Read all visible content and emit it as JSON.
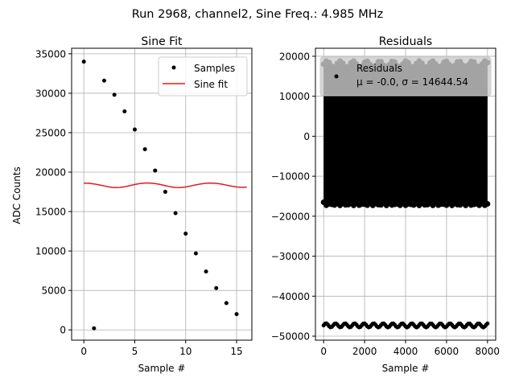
{
  "figure": {
    "suptitle": "Run 2968, channel2, Sine Freq.: 4.985 MHz"
  },
  "colors": {
    "samples": "#000000",
    "fit": "#e31a1c",
    "grid": "#b0b0b0",
    "legend_box": "#cccccc",
    "residual_fill": "#000000"
  },
  "chart_data": [
    {
      "type": "scatter",
      "title": "Sine Fit",
      "xlabel": "Sample #",
      "ylabel": "ADC Counts",
      "xlim": [
        -1.2,
        16.5
      ],
      "ylim": [
        -1300,
        35700
      ],
      "xticks": [
        0,
        5,
        10,
        15
      ],
      "yticks": [
        0,
        5000,
        10000,
        15000,
        20000,
        25000,
        30000,
        35000
      ],
      "xtick_labels": [
        "0",
        "5",
        "10",
        "15"
      ],
      "ytick_labels": [
        "0",
        "5000",
        "10000",
        "15000",
        "20000",
        "25000",
        "30000",
        "35000"
      ],
      "grid": true,
      "legend_position": "top-right",
      "series": [
        {
          "name": "Samples",
          "kind": "points",
          "x": [
            0,
            1,
            2,
            3,
            4,
            5,
            6,
            7,
            8,
            9,
            10,
            11,
            12,
            13,
            14,
            15
          ],
          "values": [
            34000,
            200,
            31600,
            29800,
            27700,
            25400,
            22900,
            20200,
            17500,
            14800,
            12200,
            9700,
            7400,
            5300,
            3400,
            2000
          ]
        },
        {
          "name": "Sine fit",
          "kind": "line",
          "x": [
            0,
            0.5,
            1,
            1.5,
            2,
            2.5,
            3,
            3.5,
            4,
            4.5,
            5,
            5.5,
            6,
            6.5,
            7,
            7.5,
            8,
            8.5,
            9,
            9.5,
            10,
            10.5,
            11,
            11.5,
            12,
            12.5,
            13,
            13.5,
            14,
            14.5,
            15,
            15.5,
            16
          ],
          "values": [
            18600,
            18590,
            18500,
            18380,
            18250,
            18120,
            18050,
            18060,
            18140,
            18280,
            18430,
            18550,
            18620,
            18620,
            18550,
            18430,
            18280,
            18140,
            18060,
            18050,
            18120,
            18250,
            18380,
            18500,
            18590,
            18620,
            18580,
            18480,
            18350,
            18220,
            18120,
            18080,
            18100
          ]
        }
      ]
    },
    {
      "type": "scatter",
      "title": "Residuals",
      "xlabel": "Sample #",
      "ylabel": "",
      "xlim": [
        -400,
        8400
      ],
      "ylim": [
        -51000,
        22000
      ],
      "xticks": [
        0,
        2000,
        4000,
        6000,
        8000
      ],
      "yticks": [
        -50000,
        -40000,
        -30000,
        -20000,
        -10000,
        0,
        10000,
        20000
      ],
      "xtick_labels": [
        "0",
        "2000",
        "4000",
        "6000",
        "8000"
      ],
      "ytick_labels": [
        "−50000",
        "−40000",
        "−30000",
        "−20000",
        "−10000",
        "0",
        "10000",
        "20000"
      ],
      "grid": true,
      "legend_position": "top-left",
      "series": [
        {
          "name": "Residuals",
          "legend_stats": "μ = -0.0, σ = 14644.54",
          "dense_band": {
            "x_range": [
              0,
              8000
            ],
            "y_range": [
              -16500,
              18000
            ],
            "top_y": 18000,
            "bottom_y": -16500,
            "edge_wobble": 800
          },
          "outlier_band": {
            "x_range": [
              0,
              8000
            ],
            "y": -47300,
            "wobble": 500
          }
        }
      ]
    }
  ]
}
